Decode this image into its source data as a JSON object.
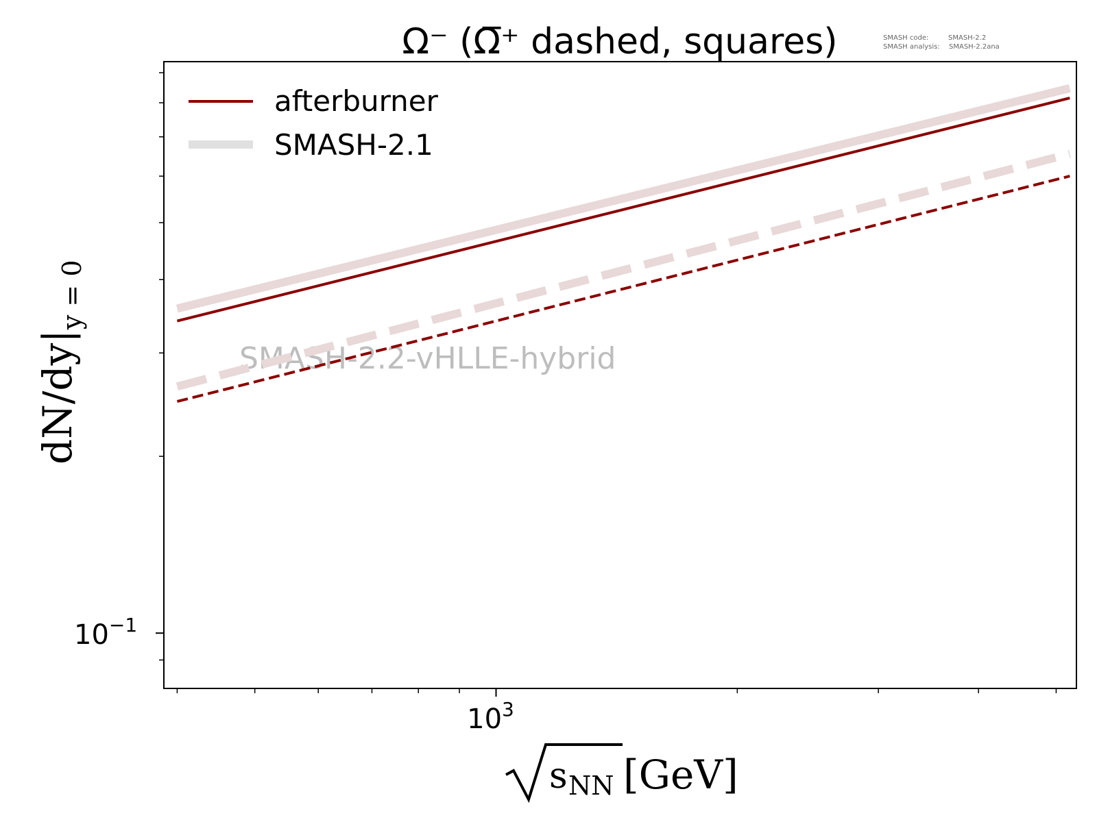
{
  "chart_data": {
    "type": "line",
    "title": "Ω⁻ (Ω̅⁺ dashed, squares)",
    "meta_text": {
      "code_label": "SMASH code:",
      "code_value": "SMASH-2.2",
      "analysis_label": "SMASH analysis:",
      "analysis_value": "SMASH-2.2ana"
    },
    "watermark": "SMASH-2.2-vHLLE-hybrid",
    "xlabel": {
      "radicand": "s",
      "subscript": "NN",
      "unit": "[GeV]"
    },
    "ylabel": {
      "main": "dN/dy|",
      "subscript": "y = 0"
    },
    "x_scale": "log",
    "y_scale": "log",
    "xlim": [
      385,
      5300
    ],
    "ylim": [
      0.0805,
      0.94
    ],
    "x_tick_labels": [
      {
        "value": 1000,
        "base": "10",
        "exp": "3"
      }
    ],
    "y_tick_labels": [
      {
        "value": 0.1,
        "base": "10",
        "exp": "−1"
      }
    ],
    "grid": false,
    "legend_position": "top-left",
    "legend": [
      {
        "label": "afterburner",
        "color": "#8b0000",
        "style": "thin-solid"
      },
      {
        "label": "SMASH-2.1",
        "color": "#e0e0e0",
        "style": "thick-solid"
      }
    ],
    "series": [
      {
        "label_ref": "afterburner",
        "particle": "Ω⁻",
        "dashed": false,
        "color": "#8b0000",
        "x": [
          400,
          5200
        ],
        "y": [
          0.34,
          0.815
        ]
      },
      {
        "label_ref": "SMASH-2.1",
        "particle": "Ω⁻",
        "dashed": false,
        "color": "#e8d8d8",
        "x": [
          400,
          5200
        ],
        "y": [
          0.357,
          0.847
        ]
      },
      {
        "label_ref": "afterburner",
        "particle": "Ω̅⁺",
        "dashed": true,
        "color": "#8b0000",
        "x": [
          400,
          5200
        ],
        "y": [
          0.248,
          0.6
        ]
      },
      {
        "label_ref": "SMASH-2.1",
        "particle": "Ω̅⁺",
        "dashed": true,
        "color": "#e8d8d8",
        "x": [
          400,
          5200
        ],
        "y": [
          0.263,
          0.655
        ]
      }
    ]
  }
}
